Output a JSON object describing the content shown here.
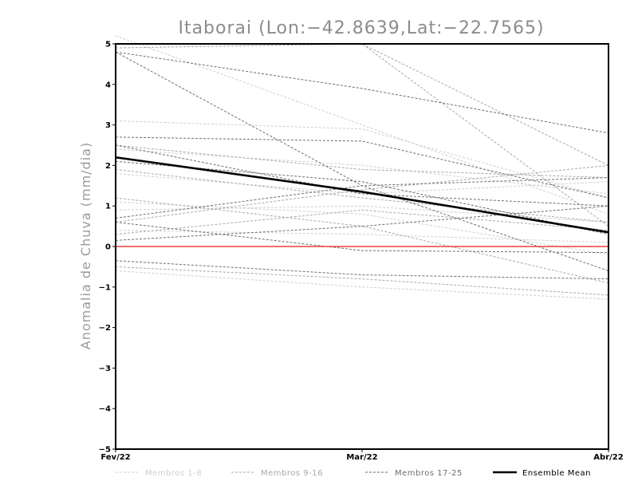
{
  "chart_data": {
    "type": "line",
    "title": "Itaborai (Lon:-42.8639,Lat:-22.7565)",
    "xlabel": "",
    "ylabel": "Anomalia de Chuva (mm/dia)",
    "categories": [
      "Fev/22",
      "Mar/22",
      "Abr/22"
    ],
    "ylim": [
      -5,
      5
    ],
    "yticks": [
      "5",
      "4",
      "3",
      "2",
      "1",
      "0",
      "-1",
      "-2",
      "-3",
      "-4",
      "-5"
    ],
    "grid": false,
    "legend_placement": "bottom",
    "colors": {
      "group1": "#cfcfcf",
      "group2": "#a8a8a8",
      "group3": "#6e6e6e",
      "mean": "#000000",
      "zero_line": "#e8413b"
    },
    "legend": [
      {
        "label": "Membros 1-8",
        "group": "group1"
      },
      {
        "label": "Membros 9-16",
        "group": "group2"
      },
      {
        "label": "Membros 17-25",
        "group": "group3"
      },
      {
        "label": "Ensemble Mean",
        "group": "mean"
      }
    ],
    "series": [
      {
        "group": "group1",
        "values": [
          3.1,
          2.9,
          1.2
        ]
      },
      {
        "group": "group1",
        "values": [
          1.8,
          1.3,
          1.6
        ]
      },
      {
        "group": "group1",
        "values": [
          1.1,
          0.8,
          -0.2
        ]
      },
      {
        "group": "group1",
        "values": [
          0.4,
          0.3,
          0.1
        ]
      },
      {
        "group": "group1",
        "values": [
          -0.6,
          -1.0,
          -1.3
        ]
      },
      {
        "group": "group1",
        "values": [
          2.4,
          2.0,
          1.3
        ]
      },
      {
        "group": "group1",
        "values": [
          5.2,
          3.0,
          0.8
        ]
      },
      {
        "group": "group1",
        "values": [
          0.9,
          1.0,
          0.6
        ]
      },
      {
        "group": "group2",
        "values": [
          5.0,
          5.0,
          0.5
        ]
      },
      {
        "group": "group2",
        "values": [
          2.5,
          1.9,
          1.7
        ]
      },
      {
        "group": "group2",
        "values": [
          1.2,
          0.5,
          -0.9
        ]
      },
      {
        "group": "group2",
        "values": [
          0.6,
          1.4,
          2.0
        ]
      },
      {
        "group": "group2",
        "values": [
          -0.5,
          -0.8,
          -1.2
        ]
      },
      {
        "group": "group2",
        "values": [
          0.3,
          0.9,
          0.4
        ]
      },
      {
        "group": "group2",
        "values": [
          4.9,
          5.0,
          2.0
        ]
      },
      {
        "group": "group2",
        "values": [
          1.9,
          1.2,
          0.6
        ]
      },
      {
        "group": "group3",
        "values": [
          4.8,
          3.9,
          2.8
        ]
      },
      {
        "group": "group3",
        "values": [
          4.8,
          1.5,
          -0.6
        ]
      },
      {
        "group": "group3",
        "values": [
          2.7,
          2.6,
          1.2
        ]
      },
      {
        "group": "group3",
        "values": [
          2.5,
          1.3,
          1.0
        ]
      },
      {
        "group": "group3",
        "values": [
          0.7,
          1.5,
          1.7
        ]
      },
      {
        "group": "group3",
        "values": [
          0.15,
          0.5,
          1.0
        ]
      },
      {
        "group": "group3",
        "values": [
          -0.35,
          -0.7,
          -0.8
        ]
      },
      {
        "group": "group3",
        "values": [
          0.6,
          -0.1,
          -0.15
        ]
      },
      {
        "group": "group3",
        "values": [
          2.1,
          1.6,
          0.3
        ]
      },
      {
        "group": "mean",
        "name": "Ensemble Mean",
        "values": [
          2.2,
          1.35,
          0.35
        ]
      }
    ]
  }
}
